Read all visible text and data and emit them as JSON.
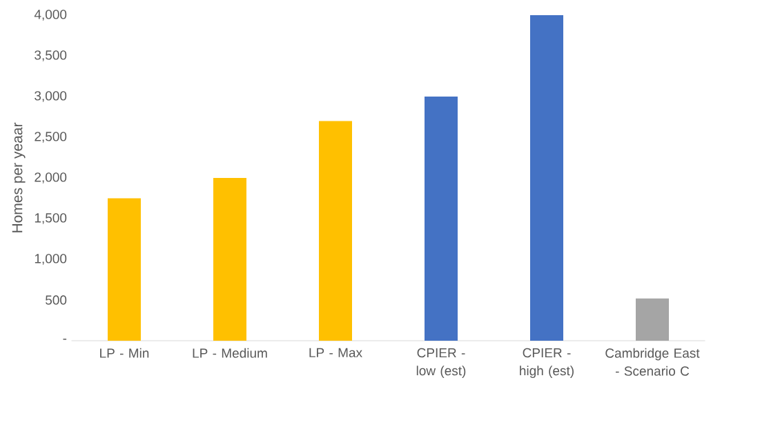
{
  "chart_data": {
    "type": "bar",
    "ylabel": "Homes per yeaar",
    "categories": [
      "LP - Min",
      "LP - Medium",
      "LP - Max",
      "CPIER - low (est)",
      "CPIER - high (est)",
      "Cambridge East - Scenario C"
    ],
    "values": [
      1750,
      2000,
      2700,
      3000,
      4000,
      520
    ],
    "colors": [
      "#ffc000",
      "#ffc000",
      "#ffc000",
      "#4472c4",
      "#4472c4",
      "#a5a5a5"
    ],
    "ylim": [
      0,
      4000
    ],
    "yticks": [
      {
        "value": 0,
        "label": "-"
      },
      {
        "value": 500,
        "label": "500"
      },
      {
        "value": 1000,
        "label": "1,000"
      },
      {
        "value": 1500,
        "label": "1,500"
      },
      {
        "value": 2000,
        "label": "2,000"
      },
      {
        "value": 2500,
        "label": "2,500"
      },
      {
        "value": 3000,
        "label": "3,000"
      },
      {
        "value": 3500,
        "label": "3,500"
      },
      {
        "value": 4000,
        "label": "4,000"
      }
    ]
  }
}
